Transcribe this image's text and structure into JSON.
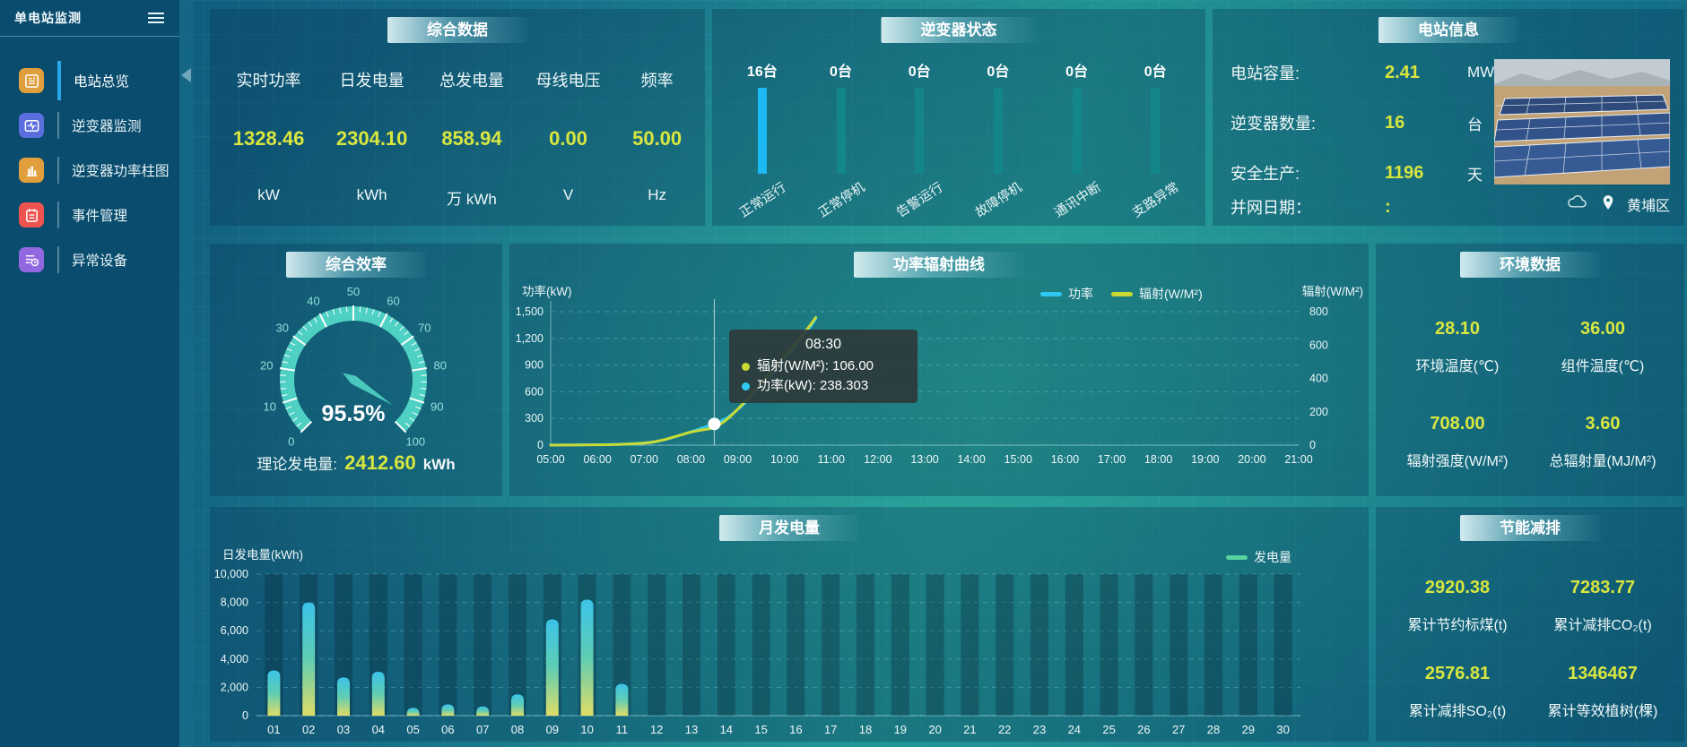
{
  "app": {
    "title": "单电站监测"
  },
  "sidebar": {
    "items": [
      {
        "id": "overview",
        "label": "电站总览",
        "icon": "overview-icon",
        "color": "#e09e3c",
        "active": true
      },
      {
        "id": "inverter-monitor",
        "label": "逆变器监测",
        "icon": "monitor-icon",
        "color": "#5b6ede",
        "active": false
      },
      {
        "id": "inverter-power",
        "label": "逆变器功率柱图",
        "icon": "bars-icon",
        "color": "#e09e3c",
        "active": false
      },
      {
        "id": "event-management",
        "label": "事件管理",
        "icon": "event-icon",
        "color": "#ef5350",
        "active": false
      },
      {
        "id": "abnormal-device",
        "label": "异常设备",
        "icon": "device-icon",
        "color": "#9168e0",
        "active": false
      }
    ]
  },
  "panels": {
    "summary": {
      "title": "综合数据",
      "metrics": [
        {
          "label": "实时功率",
          "value": "1328.46",
          "unit": "kW"
        },
        {
          "label": "日发电量",
          "value": "2304.10",
          "unit": "kWh"
        },
        {
          "label": "总发电量",
          "value": "858.94",
          "unit": "万 kWh"
        },
        {
          "label": "母线电压",
          "value": "0.00",
          "unit": "V"
        },
        {
          "label": "频率",
          "value": "50.00",
          "unit": "Hz"
        }
      ]
    },
    "inverter_status": {
      "title": "逆变器状态",
      "items": [
        {
          "count": "16台",
          "label": "正常运行",
          "highlight": true
        },
        {
          "count": "0台",
          "label": "正常停机",
          "highlight": false
        },
        {
          "count": "0台",
          "label": "告警运行",
          "highlight": false
        },
        {
          "count": "0台",
          "label": "故障停机",
          "highlight": false
        },
        {
          "count": "0台",
          "label": "通讯中断",
          "highlight": false
        },
        {
          "count": "0台",
          "label": "支路异常",
          "highlight": false
        }
      ]
    },
    "station_info": {
      "title": "电站信息",
      "rows": [
        {
          "label": "电站容量:",
          "value": "2.41",
          "unit": "MW"
        },
        {
          "label": "逆变器数量:",
          "value": "16",
          "unit": "台"
        },
        {
          "label": "安全生产:",
          "value": "1196",
          "unit": "天"
        },
        {
          "label": "并网日期：",
          "value": ":",
          "unit": ""
        }
      ],
      "location": "黄埔区"
    },
    "efficiency": {
      "title": "综合效率",
      "footer": {
        "label": "理论发电量:",
        "value": "2412.60",
        "unit": "kWh"
      }
    },
    "power_curve": {
      "title": "功率辐射曲线"
    },
    "environment": {
      "title": "环境数据",
      "items": [
        {
          "value": "28.10",
          "label": "环境温度(℃)"
        },
        {
          "value": "36.00",
          "label": "组件温度(℃)"
        },
        {
          "value": "708.00",
          "label": "辐射强度(W/M²)"
        },
        {
          "value": "3.60",
          "label": "总辐射量(MJ/M²)"
        }
      ]
    },
    "monthly": {
      "title": "月发电量"
    },
    "energy_saving": {
      "title": "节能减排",
      "items": [
        {
          "value": "2920.38",
          "label": "累计节约标煤(t)"
        },
        {
          "value": "7283.77",
          "label": "累计减排CO₂(t)"
        },
        {
          "value": "2576.81",
          "label": "累计减排SO₂(t)"
        },
        {
          "value": "1346467",
          "label": "累计等效植树(棵)"
        }
      ]
    }
  },
  "chart_data": [
    {
      "id": "power_radiation",
      "type": "line",
      "title": "功率辐射曲线",
      "x_range": [
        5,
        21
      ],
      "x_ticks": [
        "05:00",
        "06:00",
        "07:00",
        "08:00",
        "09:00",
        "10:00",
        "11:00",
        "12:00",
        "13:00",
        "14:00",
        "15:00",
        "16:00",
        "17:00",
        "18:00",
        "19:00",
        "20:00",
        "21:00"
      ],
      "ylabel_left": "功率(kW)",
      "y_left_max": 1500,
      "y_left_ticks": [
        "0",
        "300",
        "600",
        "900",
        "1,200",
        "1,500"
      ],
      "ylabel_right": "辐射(W/M²)",
      "y_right_max": 800,
      "y_right_ticks": [
        "0",
        "200",
        "400",
        "600",
        "800"
      ],
      "grid": "dashed",
      "legend_position": "top",
      "legend": [
        {
          "name": "功率",
          "color": "#2fc8f2"
        },
        {
          "name": "辐射(W/M²)",
          "color": "#c8da33"
        }
      ],
      "series": [
        {
          "name": "功率",
          "axis": "left",
          "color": "#2fc8f2",
          "points": [
            [
              5,
              2
            ],
            [
              5.5,
              3
            ],
            [
              6,
              5
            ],
            [
              6.5,
              10
            ],
            [
              7,
              25
            ],
            [
              7.25,
              40
            ],
            [
              7.5,
              70
            ],
            [
              7.75,
              110
            ],
            [
              8,
              150
            ],
            [
              8.25,
              195
            ],
            [
              8.5,
              238.303
            ],
            [
              8.75,
              300
            ],
            [
              9,
              400
            ],
            [
              9.25,
              520
            ],
            [
              9.5,
              660
            ],
            [
              9.75,
              800
            ],
            [
              10,
              950
            ],
            [
              10.25,
              1120
            ],
            [
              10.5,
              1290
            ],
            [
              10.67,
              1420
            ]
          ]
        },
        {
          "name": "辐射(W/M²)",
          "axis": "right",
          "color": "#c8da33",
          "points": [
            [
              5,
              0
            ],
            [
              5.5,
              1
            ],
            [
              6,
              2
            ],
            [
              6.5,
              5
            ],
            [
              7,
              12
            ],
            [
              7.25,
              22
            ],
            [
              7.5,
              38
            ],
            [
              7.75,
              58
            ],
            [
              8,
              78
            ],
            [
              8.25,
              92
            ],
            [
              8.5,
              106
            ],
            [
              8.75,
              150
            ],
            [
              9,
              215
            ],
            [
              9.25,
              290
            ],
            [
              9.5,
              370
            ],
            [
              9.75,
              450
            ],
            [
              10,
              530
            ],
            [
              10.25,
              615
            ],
            [
              10.5,
              700
            ],
            [
              10.67,
              765
            ]
          ]
        }
      ],
      "tooltip": {
        "time": "08:30",
        "x": 8.5,
        "marker_value": 238.303,
        "items": [
          {
            "label": "辐射(W/M²)",
            "value": "106.00",
            "color": "#c8da33"
          },
          {
            "label": "功率(kW)",
            "value": "238.303",
            "color": "#2fc8f2"
          }
        ]
      }
    },
    {
      "id": "monthly_generation",
      "type": "bar",
      "title": "月发电量",
      "ylabel": "日发电量(kWh)",
      "ylim": [
        0,
        10000
      ],
      "y_ticks": [
        "0",
        "2,000",
        "4,000",
        "6,000",
        "8,000",
        "10,000"
      ],
      "grid": "dashed",
      "legend_position": "top-right",
      "legend": [
        {
          "name": "发电量",
          "color": "#57d3a0"
        }
      ],
      "categories": [
        "01",
        "02",
        "03",
        "04",
        "05",
        "06",
        "07",
        "08",
        "09",
        "10",
        "11",
        "12",
        "13",
        "14",
        "15",
        "16",
        "17",
        "18",
        "19",
        "20",
        "21",
        "22",
        "23",
        "24",
        "25",
        "26",
        "27",
        "28",
        "29",
        "30"
      ],
      "values": [
        3200,
        8000,
        2700,
        3100,
        550,
        800,
        650,
        1500,
        6800,
        8200,
        2250,
        0,
        0,
        0,
        0,
        0,
        0,
        0,
        0,
        0,
        0,
        0,
        0,
        0,
        0,
        0,
        0,
        0,
        0,
        0
      ]
    },
    {
      "id": "efficiency_gauge",
      "type": "gauge",
      "min": 0,
      "max": 100,
      "value": 95.5,
      "value_display": "95.5%",
      "major_tick": 10,
      "color": "#4ed0c3"
    },
    {
      "id": "inverter_status",
      "type": "bar",
      "unit": "台",
      "categories": [
        "正常运行",
        "正常停机",
        "告警运行",
        "故障停机",
        "通讯中断",
        "支路异常"
      ],
      "values": [
        16,
        0,
        0,
        0,
        0,
        0
      ]
    }
  ]
}
